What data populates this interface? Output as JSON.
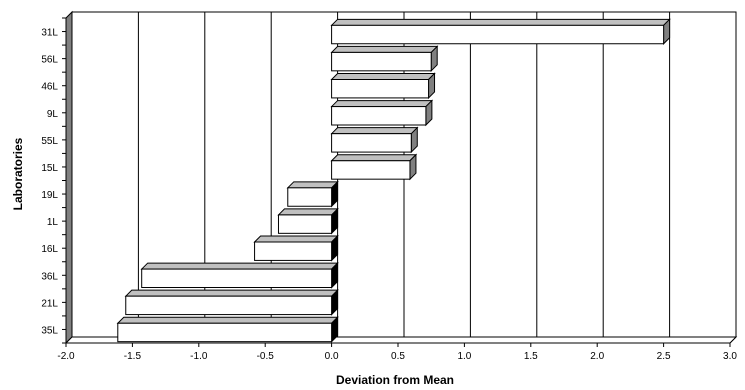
{
  "chart_data": {
    "type": "bar",
    "orientation": "horizontal",
    "title": "",
    "xlabel": "Deviation from Mean",
    "ylabel": "Laboratories",
    "xlim": [
      -2.0,
      3.0
    ],
    "x_ticks": [
      "-2.0",
      "-1.5",
      "-1.0",
      "-0.5",
      "0.0",
      "0.5",
      "1.0",
      "1.5",
      "2.0",
      "2.5",
      "3.0"
    ],
    "grid": true,
    "legend": "none",
    "categories": [
      "31L",
      "56L",
      "46L",
      "9L",
      "55L",
      "15L",
      "19L",
      "1L",
      "16L",
      "36L",
      "21L",
      "35L"
    ],
    "values": [
      2.5,
      0.75,
      0.73,
      0.71,
      0.6,
      0.59,
      -0.33,
      -0.4,
      -0.58,
      -1.43,
      -1.55,
      -1.61
    ],
    "colors": {
      "bar_front": "#ffffff",
      "bar_top": "#c0c0c0",
      "bar_side_positive": "#808080",
      "bar_side_negative": "#000000",
      "wall": "#808080"
    }
  }
}
